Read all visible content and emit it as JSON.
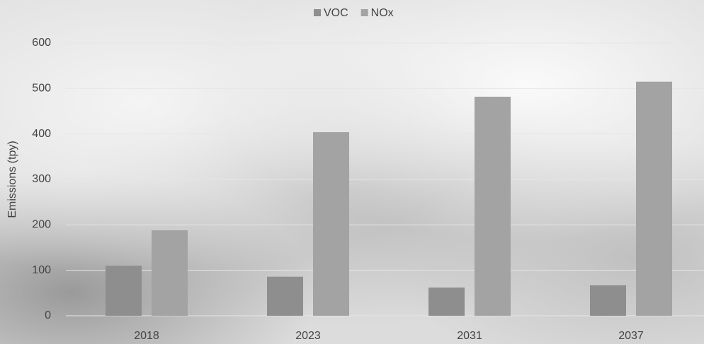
{
  "chart_data": {
    "type": "bar",
    "y_label": "Emissions (tpy)",
    "categories": [
      "2018",
      "2023",
      "2031",
      "2037"
    ],
    "series": [
      {
        "name": "VOC",
        "color": "#8e8e8e",
        "values": [
          110,
          86,
          62,
          67
        ]
      },
      {
        "name": "NOx",
        "color": "#a3a3a3",
        "values": [
          188,
          404,
          482,
          515
        ]
      }
    ],
    "ylim": [
      0,
      600
    ],
    "yticks": [
      0,
      100,
      200,
      300,
      400,
      500,
      600
    ],
    "grid": true,
    "legend": "top"
  }
}
